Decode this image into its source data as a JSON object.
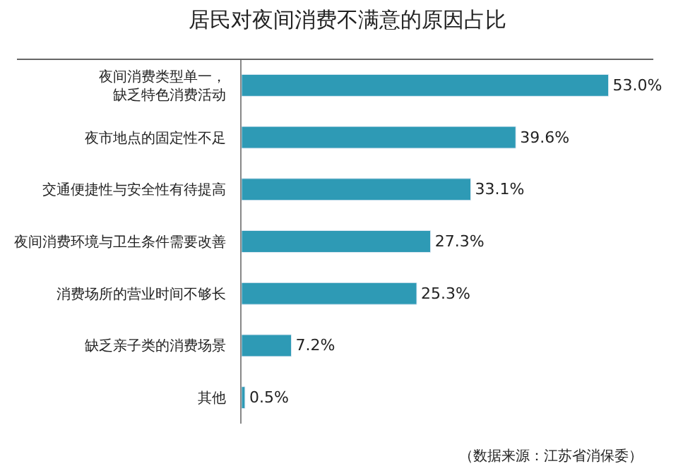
{
  "chart_data": {
    "type": "bar",
    "orientation": "horizontal",
    "title": "居民对夜间消费不满意的原因占比",
    "categories": [
      "夜间消费类型单一，缺乏特色消费活动",
      "夜市地点的固定性不足",
      "交通便捷性与安全性有待提高",
      "夜间消费环境与卫生条件需要改善",
      "消费场所的营业时间不够长",
      "缺乏亲子类的消费场景",
      "其他"
    ],
    "values": [
      53.0,
      39.6,
      33.1,
      27.3,
      25.3,
      7.2,
      0.5
    ],
    "value_labels": [
      "53.0%",
      "39.6%",
      "33.1%",
      "27.3%",
      "25.3%",
      "7.2%",
      "0.5%"
    ],
    "color": "#2e9ab5",
    "annotations": [
      "（数据来源：江苏省消保委）"
    ],
    "legend": false
  }
}
